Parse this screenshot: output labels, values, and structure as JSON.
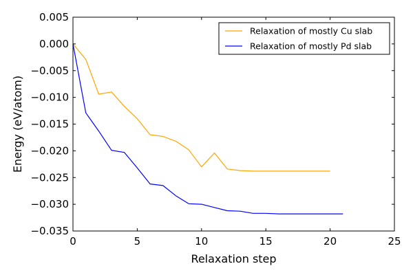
{
  "chart_data": {
    "type": "line",
    "title": "",
    "xlabel": "Relaxation step",
    "ylabel": "Energy (eV/atom)",
    "xlim": [
      0,
      25
    ],
    "ylim": [
      -0.035,
      0.005
    ],
    "x_ticks": [
      0,
      5,
      10,
      15,
      20,
      25
    ],
    "x_tick_labels": [
      "0",
      "5",
      "10",
      "15",
      "20",
      "25"
    ],
    "y_ticks": [
      0.005,
      0.0,
      -0.005,
      -0.01,
      -0.015,
      -0.02,
      -0.025,
      -0.03,
      -0.035
    ],
    "y_tick_labels": [
      "0.005",
      "0.000",
      "−0.005",
      "−0.010",
      "−0.015",
      "−0.020",
      "−0.025",
      "−0.030",
      "−0.035"
    ],
    "grid": false,
    "legend_position": "top-right",
    "series": [
      {
        "name": "Relaxation of mostly Cu slab",
        "color": "#ffa500",
        "x": [
          0,
          1,
          2,
          3,
          4,
          5,
          6,
          7,
          8,
          9,
          10,
          11,
          12,
          13,
          14,
          15,
          16,
          17,
          18,
          19,
          20
        ],
        "y": [
          0.0,
          -0.0029,
          -0.0094,
          -0.009,
          -0.0117,
          -0.014,
          -0.017,
          -0.0173,
          -0.0182,
          -0.0198,
          -0.023,
          -0.0204,
          -0.0234,
          -0.0237,
          -0.0238,
          -0.0238,
          -0.0238,
          -0.0238,
          -0.0238,
          -0.0238,
          -0.0238
        ]
      },
      {
        "name": "Relaxation of mostly Pd slab",
        "color": "#0000ff",
        "x": [
          0,
          1,
          2,
          3,
          4,
          5,
          6,
          7,
          8,
          9,
          10,
          11,
          12,
          13,
          14,
          15,
          16,
          17,
          18,
          19,
          20,
          21
        ],
        "y": [
          0.0,
          -0.0129,
          -0.0163,
          -0.0199,
          -0.0203,
          -0.0232,
          -0.0262,
          -0.0265,
          -0.0284,
          -0.0299,
          -0.03,
          -0.0306,
          -0.0312,
          -0.0313,
          -0.0317,
          -0.0317,
          -0.0318,
          -0.0318,
          -0.0318,
          -0.0318,
          -0.0318,
          -0.0318
        ]
      }
    ]
  }
}
